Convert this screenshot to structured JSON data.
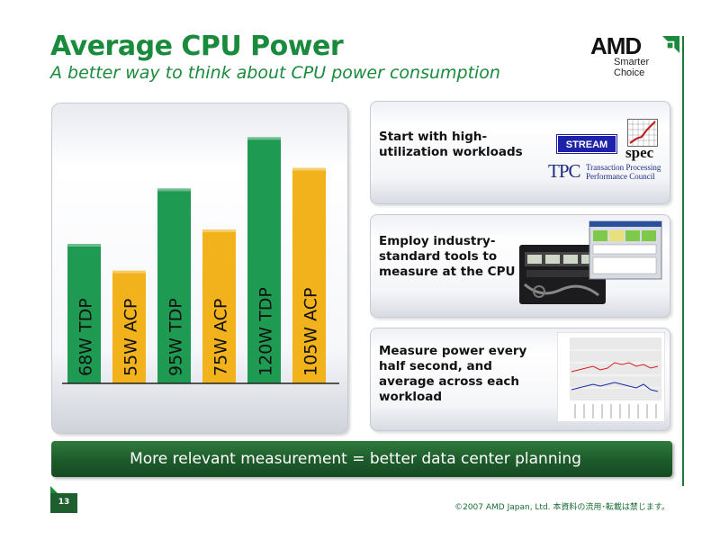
{
  "slide": {
    "title": "Average CPU Power",
    "subtitle": "A better way to think about CPU power consumption",
    "page_number": "13",
    "footer": "©2007  AMD Japan, Ltd. 本資料の流用･転載は禁じます。"
  },
  "logo": {
    "brand": "AMD",
    "tagline": "Smarter Choice"
  },
  "colors": {
    "title_green": "#1a8a3c",
    "tdp_bar": "#1f9a52",
    "acp_bar": "#f2b21b",
    "banner": "#1d5a2a"
  },
  "chart_data": {
    "type": "bar",
    "unit": "W",
    "categories": [
      "68W TDP",
      "55W ACP",
      "95W TDP",
      "75W ACP",
      "120W TDP",
      "105W ACP"
    ],
    "values": [
      68,
      55,
      95,
      75,
      120,
      105
    ],
    "bar_colors": [
      "#1f9a52",
      "#f2b21b",
      "#1f9a52",
      "#f2b21b",
      "#1f9a52",
      "#f2b21b"
    ],
    "ylim": [
      0,
      125
    ],
    "grid": false,
    "legend": "none"
  },
  "panels": [
    {
      "text": "Start with high-utilization workloads",
      "logos": {
        "stream": "STREAM",
        "spec": "spec",
        "tpc": "TPC",
        "tpc_text_1": "Transaction Processing",
        "tpc_text_2": "Performance Council"
      }
    },
    {
      "text": "Employ industry-standard tools to measure at the CPU",
      "image": "power-meter-photo"
    },
    {
      "text": "Measure power every half second, and average across each workload",
      "image": "power-trace-graph"
    }
  ],
  "banner": {
    "text": "More relevant measurement = better data center planning"
  }
}
